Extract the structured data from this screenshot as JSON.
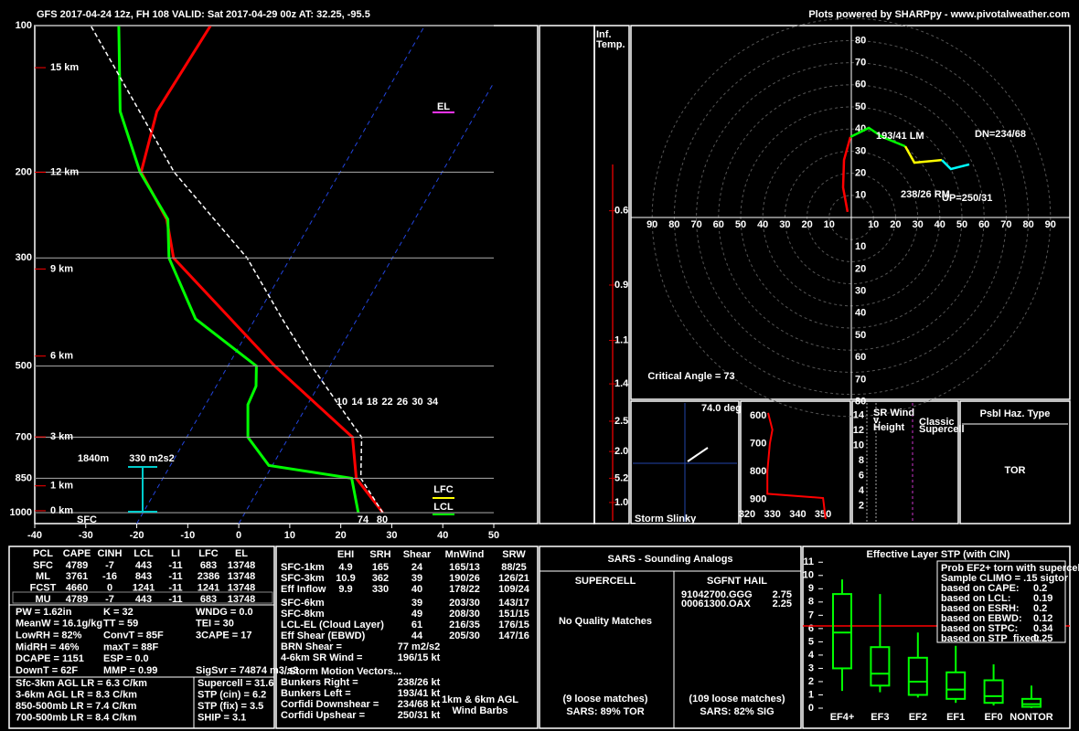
{
  "header": {
    "title": "GFS 2017-04-24 12z, FH 108   VALID: Sat 2017-04-29 00z   AT: 32.25, -95.5",
    "credit": "Plots powered by SHARPpy - www.pivotalweather.com"
  },
  "chart_data": {
    "type": "skewt",
    "ylim": [
      100,
      1053
    ],
    "yticks": [
      100,
      200,
      300,
      500,
      700,
      850,
      1000
    ],
    "xlim": [
      -40,
      50
    ],
    "xticks": [
      -40,
      -30,
      -20,
      -10,
      0,
      10,
      20,
      30,
      40,
      50
    ],
    "log_y": true,
    "height_labels": [
      {
        "value": 122,
        "label": "15 km"
      },
      {
        "value": 200,
        "label": "12 km"
      },
      {
        "value": 316,
        "label": "9 km"
      },
      {
        "value": 477,
        "label": "6 km"
      },
      {
        "value": 699,
        "label": "3 km"
      },
      {
        "value": 881,
        "label": "1 km"
      },
      {
        "value": 991,
        "label": "0 km"
      }
    ],
    "series": [
      {
        "color": "#ff0000",
        "pressure": [
          1000,
          850,
          700,
          500,
          300,
          250,
          200,
          150,
          100
        ],
        "values": [
          27,
          17.9,
          12.5,
          -10.8,
          -42.9,
          -48.6,
          -59,
          -62.8,
          -62
        ]
      },
      {
        "color": "#00ff00",
        "pressure": [
          1000,
          850,
          800,
          700,
          600,
          550,
          500,
          400,
          300,
          250,
          200,
          150,
          100
        ],
        "values": [
          22.2,
          17,
          -0.7,
          -8,
          -11.7,
          -12.2,
          -14.4,
          -31.7,
          -43.8,
          -48.4,
          -59.2,
          -70,
          -80
        ]
      },
      {
        "color": "#ffffff",
        "pressure": [
          1000,
          850,
          700,
          500,
          400,
          300,
          200,
          100
        ],
        "values": [
          27,
          18.8,
          14.3,
          -3.6,
          -14.7,
          -28.5,
          -52.5,
          -85.5
        ]
      }
    ],
    "annotations": {
      "el": "EL",
      "lfc": "LFC",
      "lcl": "LCL",
      "eff_depth": "1840m",
      "eff_srh": "330 m2s2",
      "sfc": "SFC",
      "sfc_td": "74",
      "sfc_t": "80"
    },
    "mixing_ratio_labels": [
      "10",
      "14",
      "18",
      "22",
      "26",
      "30",
      "34"
    ]
  },
  "inferred_temp": {
    "title": "Inf.\nTemp.",
    "pressure": [
      240,
      341,
      443,
      544,
      649,
      749,
      850,
      953
    ],
    "labels": [
      "0.6",
      "0.9",
      "1.1",
      "1.4",
      "2.5",
      "2.0",
      "5.2",
      "1.0"
    ]
  },
  "hodograph": {
    "ticks": [
      10,
      20,
      30,
      40,
      50,
      60,
      70,
      80,
      90
    ],
    "pieces": [
      {
        "color": "#ff0000",
        "u": [
          -1.7,
          -3.7,
          -3.3,
          -0.4
        ],
        "v": [
          2.5,
          13.6,
          26,
          36.4
        ]
      },
      {
        "color": "#00ff00",
        "u": [
          -0.4,
          7.9,
          14,
          24.4
        ],
        "v": [
          36.4,
          40.5,
          36.4,
          32.2
        ]
      },
      {
        "color": "#ffff00",
        "u": [
          24.4,
          28.5,
          40.9
        ],
        "v": [
          32.2,
          24.8,
          26
        ]
      },
      {
        "color": "#00ffff",
        "u": [
          40.9,
          45,
          53.3
        ],
        "v": [
          26,
          21.9,
          24
        ]
      }
    ],
    "labels": {
      "rm": "238/26 RM",
      "lm": "193/41 LM",
      "up": "UP=250/31",
      "dn": "DN=234/68"
    },
    "critical_angle": "Critical Angle = 73"
  },
  "slinky": {
    "angle": "74.0 deg",
    "title": "Storm Slinky"
  },
  "thetae": {
    "xticks": [
      320,
      330,
      340,
      350
    ],
    "yticks": [
      600,
      700,
      800,
      900
    ],
    "pressure": [
      590,
      650,
      700,
      800,
      880,
      895,
      970
    ],
    "values": [
      328.3,
      330,
      329,
      328,
      328,
      350,
      351
    ]
  },
  "srwind": {
    "yticks": [
      2,
      4,
      6,
      8,
      10,
      12,
      14
    ],
    "title": "SR Wind\nv.\nHeight",
    "note": "Classic\nSupercell"
  },
  "hazard": {
    "title": "Psbl Haz. Type",
    "value": "TOR"
  },
  "thermo": {
    "header": [
      "PCL",
      "CAPE",
      "CINH",
      "LCL",
      "LI",
      "LFC",
      "EL"
    ],
    "rows": [
      [
        "SFC",
        "4789",
        "-7",
        "443",
        "-11",
        "683",
        "13748"
      ],
      [
        "ML",
        "3761",
        "-16",
        "843",
        "-11",
        "2386",
        "13748"
      ],
      [
        "FCST",
        "4660",
        "0",
        "1241",
        "-11",
        "1241",
        "13748"
      ],
      [
        "MU",
        "4789",
        "-7",
        "443",
        "-11",
        "683",
        "13748"
      ]
    ],
    "indices": [
      [
        "PW = 1.62in",
        "K = 32",
        "WNDG = 0.0"
      ],
      [
        "MeanW = 16.1g/kg",
        "TT = 59",
        "TEI = 30"
      ],
      [
        "LowRH = 82%",
        "ConvT = 85F",
        "3CAPE = 17"
      ],
      [
        "MidRH = 46%",
        "maxT = 88F"
      ],
      [
        "DCAPE = 1151",
        "ESP = 0.0"
      ],
      [
        "DownT = 62F",
        "MMP = 0.99",
        "SigSvr = 74874 m3/s3"
      ]
    ],
    "lapse_rates": [
      "Sfc-3km AGL LR = 6.3 C/km",
      "3-6km AGL LR = 8.3 C/km",
      "850-500mb LR = 7.4 C/km",
      "700-500mb LR = 8.4 C/km"
    ],
    "composites": [
      {
        "text": "Supercell = 31.6",
        "color": "#ff33ff"
      },
      {
        "text": "STP (cin) = 6.2",
        "color": "#ff3333"
      },
      {
        "text": "STP (fix) = 3.5",
        "color": "#ffff33"
      },
      {
        "text": "SHIP = 3.1",
        "color": "#ff3333"
      }
    ]
  },
  "kinematic": {
    "header": [
      "EHI",
      "SRH",
      "Shear",
      "MnWind",
      "SRW"
    ],
    "rows": [
      [
        "SFC-1km",
        "4.9",
        "165",
        "24",
        "165/13",
        "88/25"
      ],
      [
        "SFC-3km",
        "10.9",
        "362",
        "39",
        "190/26",
        "126/21"
      ],
      [
        "Eff Inflow",
        "9.9",
        "330",
        "40",
        "178/22",
        "109/24"
      ],
      [
        "SFC-6km",
        "",
        "",
        "39",
        "203/30",
        "143/17"
      ],
      [
        "SFC-8km",
        "",
        "",
        "49",
        "208/30",
        "151/15"
      ],
      [
        "LCL-EL (Cloud Layer)",
        "",
        "",
        "61",
        "216/35",
        "176/15"
      ],
      [
        "Eff Shear (EBWD)",
        "",
        "",
        "44",
        "205/30",
        "147/16"
      ]
    ],
    "misc": [
      [
        "BRN Shear =",
        "77 m2/s2"
      ],
      [
        "4-6km SR Wind =",
        "196/15 kt"
      ]
    ],
    "motion_title": "...Storm Motion Vectors...",
    "motions": [
      [
        "Bunkers Right =",
        "238/26 kt",
        "#00ffff"
      ],
      [
        "Bunkers Left =",
        "193/41 kt",
        "#ff3333"
      ],
      [
        "Corfidi Downshear =",
        "234/68 kt",
        "#ffffff"
      ],
      [
        "Corfidi Upshear =",
        "250/31 kt",
        "#ffffff"
      ]
    ],
    "barb_note": "1km & 6km AGL\nWind Barbs"
  },
  "sars": {
    "title": "SARS - Sounding Analogs",
    "supercell": {
      "title": "SUPERCELL",
      "matches": "No Quality Matches",
      "loose": "(9 loose matches)",
      "summary": "SARS: 89% TOR"
    },
    "hail": {
      "title": "SGFNT HAIL",
      "matches": [
        [
          "91042700.GGG",
          "2.75"
        ],
        [
          "00061300.OAX",
          "2.25"
        ]
      ],
      "loose": "(109 loose matches)",
      "summary": "SARS: 82% SIG"
    }
  },
  "stp": {
    "type": "box",
    "title": "Effective Layer STP (with CIN)",
    "ylim": [
      0,
      11.5
    ],
    "yticks": [
      0,
      1,
      2,
      3,
      4,
      5,
      6,
      7,
      8,
      9,
      10,
      11
    ],
    "categories": [
      "EF4+",
      "EF3",
      "EF2",
      "EF1",
      "EF0",
      "NONTOR"
    ],
    "whislo": [
      1.3,
      1.2,
      0.8,
      0.4,
      0.2,
      0
    ],
    "q1": [
      3.0,
      1.7,
      1.0,
      0.7,
      0.4,
      0.1
    ],
    "med": [
      5.7,
      2.6,
      2.0,
      1.4,
      0.9,
      0.3
    ],
    "q3": [
      8.6,
      4.6,
      3.8,
      2.7,
      2.1,
      0.7
    ],
    "whishi": [
      9.7,
      8.6,
      5.7,
      4.7,
      3.3,
      1.7
    ],
    "color": "#00ff00",
    "current": 6.2,
    "current_color": "#ff0000",
    "legend": [
      "Prob EF2+ torn with supercell",
      "Sample CLIMO = .15 sigtor"
    ],
    "probs": [
      [
        "based on CAPE:",
        "0.2",
        "#ffff00"
      ],
      [
        "based on LCL:",
        "0.19",
        "#ffff00"
      ],
      [
        "based on ESRH:",
        "0.2",
        "#ffff00"
      ],
      [
        "based on EBWD:",
        "0.12",
        "#ff9900"
      ],
      [
        "based on STPC:",
        "0.34",
        "#ff3333"
      ],
      [
        "based on STP_fixed:",
        "0.25",
        "#ffff00"
      ]
    ]
  }
}
